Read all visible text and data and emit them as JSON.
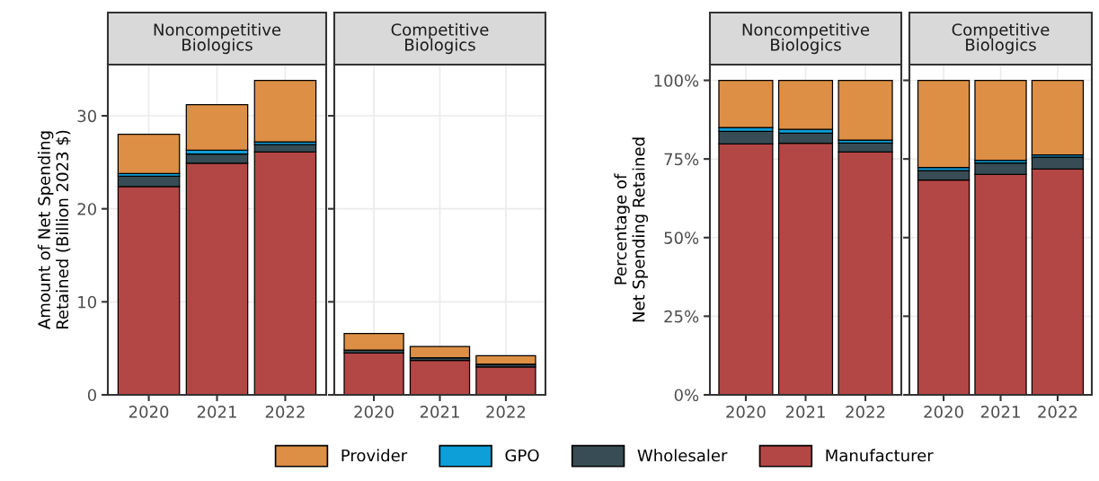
{
  "chart_data": [
    {
      "type": "bar",
      "stacked": true,
      "title": "Noncompetitive\nBiologics",
      "ylabel": "Amount of Net Spending\nRetained (Billion 2023 $)",
      "categories": [
        "2020",
        "2021",
        "2022"
      ],
      "ylim": [
        0,
        35.5
      ],
      "yticks": [
        0,
        10,
        20,
        30
      ],
      "grid": true,
      "legend": "bottom",
      "series": [
        {
          "name": "Manufacturer",
          "color": "#b34745",
          "values": [
            22.4,
            24.9,
            26.1
          ]
        },
        {
          "name": "Wholesaler",
          "color": "#374c55",
          "values": [
            1.1,
            1.0,
            0.8
          ]
        },
        {
          "name": "GPO",
          "color": "#0c9fd8",
          "values": [
            0.3,
            0.4,
            0.3
          ]
        },
        {
          "name": "Provider",
          "color": "#dd8f45",
          "values": [
            4.2,
            4.9,
            6.6
          ]
        }
      ]
    },
    {
      "type": "bar",
      "stacked": true,
      "title": "Competitive\nBiologics",
      "categories": [
        "2020",
        "2021",
        "2022"
      ],
      "ylim": [
        0,
        35.5
      ],
      "yticks": [
        0,
        10,
        20,
        30
      ],
      "grid": true,
      "tick_labels": "x",
      "series": [
        {
          "name": "Manufacturer",
          "color": "#b34745",
          "values": [
            4.5,
            3.7,
            3.0
          ]
        },
        {
          "name": "Wholesaler",
          "color": "#374c55",
          "values": [
            0.3,
            0.3,
            0.3
          ]
        },
        {
          "name": "GPO",
          "color": "#0c9fd8",
          "values": [
            null,
            null,
            null
          ]
        },
        {
          "name": "Provider",
          "color": "#dd8f45",
          "values": [
            1.8,
            1.2,
            0.9
          ]
        }
      ]
    },
    {
      "type": "bar",
      "stacked": true,
      "title": "Noncompetitive\nBiologics",
      "ylabel": "Percentage of\nNet Spending Retained",
      "categories": [
        "2020",
        "2021",
        "2022"
      ],
      "ylim": [
        0,
        105
      ],
      "yticks": [
        {
          "value": 0,
          "label": "0%"
        },
        {
          "value": 25,
          "label": "25%"
        },
        {
          "value": 50,
          "label": "50%"
        },
        {
          "value": 75,
          "label": "75%"
        },
        {
          "value": 100,
          "label": "100%"
        }
      ],
      "grid": true,
      "series": [
        {
          "name": "Manufacturer",
          "color": "#b34745",
          "values": [
            79.8,
            80.0,
            77.2
          ]
        },
        {
          "name": "Wholesaler",
          "color": "#374c55",
          "values": [
            4.0,
            3.2,
            2.9
          ]
        },
        {
          "name": "GPO",
          "color": "#0c9fd8",
          "values": [
            1.2,
            1.2,
            0.9
          ]
        },
        {
          "name": "Provider",
          "color": "#dd8f45",
          "values": [
            15.0,
            15.6,
            19.0
          ]
        }
      ]
    },
    {
      "type": "bar",
      "stacked": true,
      "title": "Competitive\nBiologics",
      "categories": [
        "2020",
        "2021",
        "2022"
      ],
      "ylim": [
        0,
        105
      ],
      "yticks": [
        0,
        25,
        50,
        75,
        100
      ],
      "grid": true,
      "tick_labels": "x",
      "series": [
        {
          "name": "Manufacturer",
          "color": "#b34745",
          "values": [
            68.3,
            70.1,
            71.8
          ]
        },
        {
          "name": "Wholesaler",
          "color": "#374c55",
          "values": [
            3.0,
            3.6,
            3.8
          ]
        },
        {
          "name": "GPO",
          "color": "#0c9fd8",
          "values": [
            1.0,
            0.9,
            0.7
          ]
        },
        {
          "name": "Provider",
          "color": "#dd8f45",
          "values": [
            27.7,
            25.4,
            23.7
          ]
        }
      ]
    }
  ]
}
